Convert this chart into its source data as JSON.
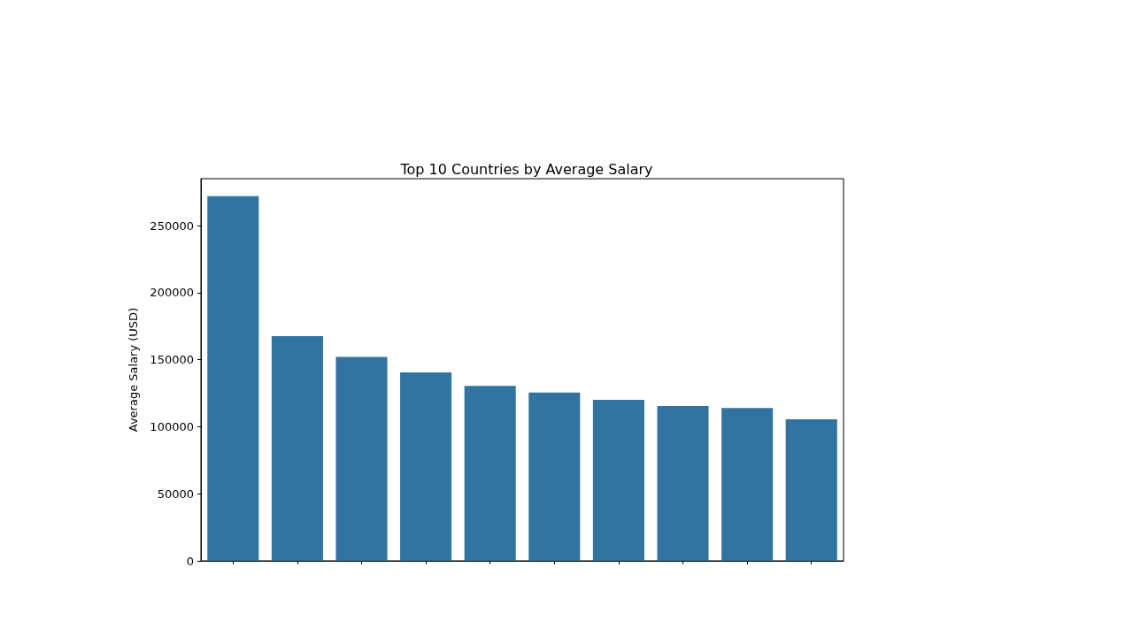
{
  "chart_data": {
    "type": "bar",
    "title": "Top 10 Countries by Average Salary",
    "ylabel": "Average Salary (USD)",
    "categories": [
      null,
      null,
      null,
      null,
      null,
      null,
      null,
      null,
      null,
      null
    ],
    "values": [
      272000,
      167500,
      152000,
      140500,
      130500,
      125500,
      120000,
      115500,
      114000,
      105500
    ],
    "color": "#3274a1",
    "ylim": [
      0,
      285000
    ],
    "yticks": [
      0,
      50000,
      100000,
      150000,
      200000,
      250000
    ],
    "grid": false
  }
}
